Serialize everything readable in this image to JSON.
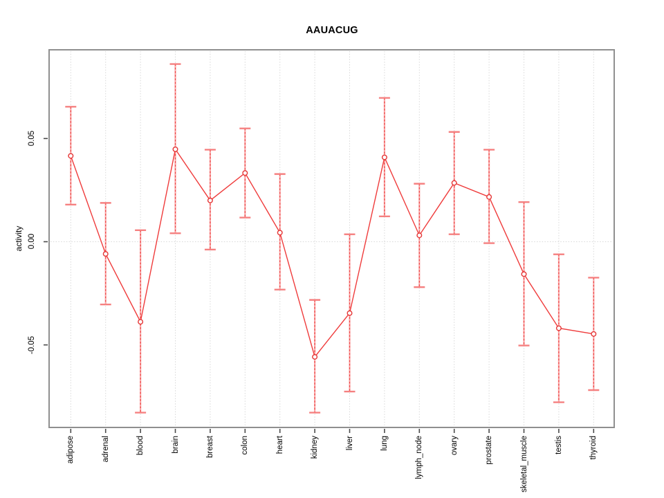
{
  "title": "AAUACUG",
  "chart_data": {
    "type": "line",
    "title": "AAUACUG",
    "xlabel": "",
    "ylabel": "activity",
    "categories": [
      "adipose",
      "adrenal",
      "blood",
      "brain",
      "breast",
      "colon",
      "heart",
      "kidney",
      "liver",
      "lung",
      "lymph_node",
      "ovary",
      "prostate",
      "skeletal_muscle",
      "testis",
      "thyroid"
    ],
    "series": [
      {
        "name": "activity",
        "values": [
          0.0416,
          -0.0059,
          -0.0388,
          0.0448,
          0.02,
          0.0333,
          0.0044,
          -0.0558,
          -0.0346,
          0.0409,
          0.0031,
          0.0285,
          0.0217,
          -0.0157,
          -0.0419,
          -0.0447
        ],
        "error_upper": [
          0.0654,
          0.0188,
          0.0056,
          0.0861,
          0.0446,
          0.0549,
          0.0328,
          -0.0282,
          0.0036,
          0.0697,
          0.0281,
          0.0532,
          0.0446,
          0.0192,
          -0.0061,
          -0.0174
        ],
        "error_lower": [
          0.018,
          -0.0304,
          -0.0828,
          0.0041,
          -0.0038,
          0.0117,
          -0.0232,
          -0.0828,
          -0.0726,
          0.0123,
          -0.022,
          0.0036,
          -0.0007,
          -0.0503,
          -0.0778,
          -0.0719
        ]
      }
    ],
    "yticks": [
      0.05,
      0.0,
      -0.05
    ],
    "ytick_labels": [
      "0.05",
      "0.00",
      "-0.05"
    ],
    "ylim": [
      -0.09,
      0.093
    ],
    "grid": "vertical dotted line per category, dotted horizontal line at 0",
    "legend_position": "none",
    "marker": "open-circle",
    "colors": {
      "line": "#ef3b3b",
      "point": "#e53535",
      "error_bar_cap": "#f58080",
      "error_bar_line": "#f9abab",
      "error_bar_dash": "#ee4343",
      "grid": "#d8d8d8",
      "box": "#8f8f8f",
      "tick": "#4a4a4a",
      "text": "#000000",
      "background": "#ffffff"
    }
  }
}
